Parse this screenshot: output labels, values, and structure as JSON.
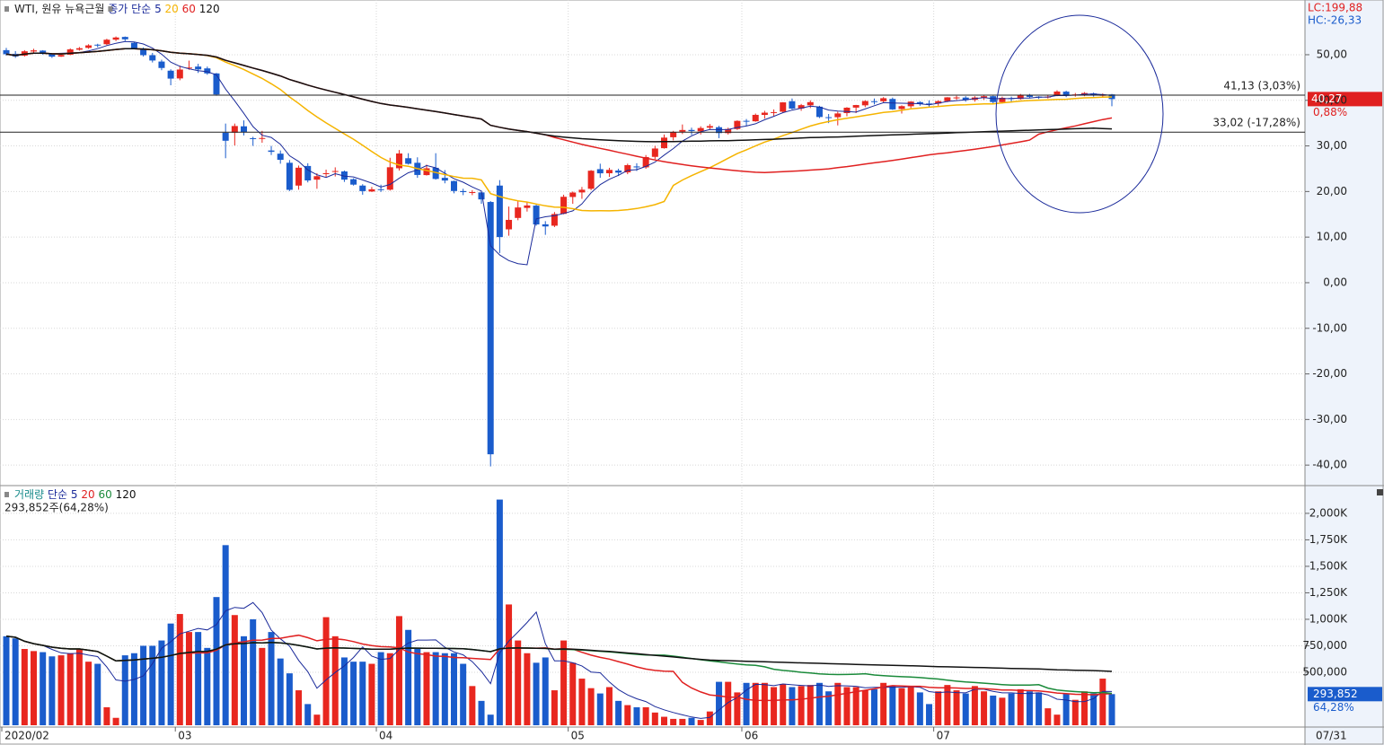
{
  "chart_data": [
    {
      "type": "candlestick",
      "title": "WTI, 원유 뉴욕근월",
      "ma_label": "종가 단순",
      "moving_averages": [
        {
          "period": 5,
          "color": "#1a2a9a"
        },
        {
          "period": 20,
          "color": "#f5b400"
        },
        {
          "period": 60,
          "color": "#e02020"
        },
        {
          "period": 120,
          "color": "#111111"
        }
      ],
      "up_color": "#e8271f",
      "down_color": "#1a5ccc",
      "categories": [
        "2020/02",
        null,
        null,
        null,
        null,
        null,
        null,
        null,
        null,
        null,
        null,
        null,
        null,
        null,
        null,
        null,
        null,
        null,
        null,
        "03",
        null,
        null,
        null,
        null,
        null,
        null,
        null,
        null,
        null,
        null,
        null,
        null,
        null,
        null,
        null,
        null,
        null,
        null,
        null,
        null,
        null,
        "04",
        null,
        null,
        null,
        null,
        null,
        null,
        null,
        null,
        null,
        null,
        null,
        null,
        null,
        null,
        null,
        null,
        null,
        null,
        null,
        null,
        "05",
        null,
        null,
        null,
        null,
        null,
        null,
        null,
        null,
        null,
        null,
        null,
        null,
        null,
        null,
        null,
        null,
        null,
        null,
        "06",
        null,
        null,
        null,
        null,
        null,
        null,
        null,
        null,
        null,
        null,
        null,
        null,
        null,
        null,
        null,
        null,
        null,
        null,
        null,
        null,
        "07",
        null,
        null,
        null,
        null,
        null,
        null,
        null,
        null,
        null,
        null,
        null,
        null,
        null,
        null,
        null,
        null,
        null,
        null,
        null
      ],
      "ohlc": [
        [
          51.0,
          51.5,
          49.8,
          50.11
        ],
        [
          50.2,
          50.8,
          49.3,
          49.61
        ],
        [
          49.8,
          51.0,
          49.6,
          50.75
        ],
        [
          50.7,
          51.3,
          50.3,
          50.95
        ],
        [
          50.9,
          51.0,
          50.0,
          50.32
        ],
        [
          50.1,
          50.3,
          49.3,
          49.57
        ],
        [
          49.6,
          50.3,
          49.5,
          49.94
        ],
        [
          50.0,
          51.4,
          49.9,
          51.17
        ],
        [
          51.1,
          51.7,
          50.9,
          51.42
        ],
        [
          51.5,
          52.3,
          51.3,
          52.05
        ],
        [
          52.2,
          52.4,
          51.6,
          52.05
        ],
        [
          52.3,
          53.5,
          52.1,
          53.29
        ],
        [
          53.3,
          54.0,
          53.0,
          53.78
        ],
        [
          53.9,
          54.0,
          53.0,
          53.38
        ],
        [
          52.6,
          52.8,
          51.2,
          51.43
        ],
        [
          51.4,
          51.6,
          49.6,
          49.9
        ],
        [
          49.9,
          50.4,
          48.3,
          48.73
        ],
        [
          48.5,
          48.9,
          46.6,
          47.09
        ],
        [
          46.5,
          46.8,
          43.3,
          44.76
        ],
        [
          44.8,
          47.6,
          44.4,
          46.75
        ],
        [
          47.1,
          48.7,
          46.7,
          47.18
        ],
        [
          47.4,
          48.0,
          46.0,
          46.78
        ],
        [
          47.0,
          47.4,
          45.6,
          45.9
        ],
        [
          45.9,
          46.0,
          41.0,
          41.28
        ],
        [
          32.9,
          34.9,
          27.3,
          31.13
        ],
        [
          32.9,
          34.9,
          30.1,
          34.36
        ],
        [
          34.3,
          35.6,
          32.3,
          32.98
        ],
        [
          31.7,
          32.0,
          30.0,
          31.5
        ],
        [
          31.7,
          33.3,
          30.7,
          31.73
        ],
        [
          29.0,
          30.0,
          28.0,
          28.7
        ],
        [
          28.3,
          29.0,
          26.1,
          26.95
        ],
        [
          26.3,
          26.9,
          20.1,
          20.37
        ],
        [
          21.3,
          25.7,
          20.4,
          25.22
        ],
        [
          25.6,
          26.2,
          22.0,
          22.43
        ],
        [
          22.6,
          24.0,
          20.6,
          23.36
        ],
        [
          23.9,
          24.8,
          23.2,
          24.01
        ],
        [
          24.3,
          25.3,
          23.3,
          24.49
        ],
        [
          24.4,
          24.6,
          22.1,
          22.6
        ],
        [
          22.7,
          22.9,
          21.3,
          21.51
        ],
        [
          21.3,
          21.6,
          19.3,
          20.09
        ],
        [
          20.0,
          21.0,
          19.9,
          20.48
        ],
        [
          20.5,
          21.5,
          19.9,
          20.31
        ],
        [
          20.4,
          27.4,
          20.2,
          25.32
        ],
        [
          25.1,
          29.1,
          24.6,
          28.34
        ],
        [
          27.3,
          28.4,
          25.9,
          26.08
        ],
        [
          26.3,
          27.5,
          23.0,
          23.63
        ],
        [
          23.6,
          25.9,
          23.5,
          25.09
        ],
        [
          25.2,
          28.4,
          22.6,
          22.76
        ],
        [
          23.0,
          24.7,
          21.8,
          22.41
        ],
        [
          22.3,
          22.4,
          19.6,
          20.11
        ],
        [
          20.1,
          20.6,
          19.2,
          19.87
        ],
        [
          19.8,
          20.3,
          19.2,
          19.87
        ],
        [
          19.8,
          20.0,
          17.3,
          18.27
        ],
        [
          17.7,
          17.9,
          -40.3,
          -37.63
        ],
        [
          21.3,
          22.5,
          6.5,
          10.01
        ],
        [
          11.7,
          16.7,
          10.3,
          13.78
        ],
        [
          14.2,
          17.9,
          13.7,
          16.5
        ],
        [
          16.4,
          17.7,
          15.6,
          16.94
        ],
        [
          16.9,
          17.1,
          12.5,
          12.78
        ],
        [
          12.8,
          13.5,
          10.5,
          12.34
        ],
        [
          12.5,
          15.5,
          12.2,
          15.06
        ],
        [
          15.1,
          19.3,
          15.0,
          18.84
        ],
        [
          18.8,
          20.0,
          17.3,
          19.78
        ],
        [
          19.8,
          21.0,
          18.4,
          20.39
        ],
        [
          20.6,
          24.7,
          20.3,
          24.56
        ],
        [
          24.9,
          26.1,
          23.0,
          23.99
        ],
        [
          24.0,
          25.2,
          23.2,
          24.74
        ],
        [
          24.6,
          25.0,
          23.4,
          24.14
        ],
        [
          24.2,
          26.1,
          23.8,
          25.78
        ],
        [
          25.5,
          26.2,
          24.5,
          25.29
        ],
        [
          25.3,
          28.0,
          25.0,
          27.56
        ],
        [
          27.6,
          30.0,
          27.1,
          29.43
        ],
        [
          29.5,
          32.5,
          29.4,
          31.82
        ],
        [
          31.9,
          33.3,
          31.2,
          32.96
        ],
        [
          33.1,
          34.7,
          32.6,
          33.49
        ],
        [
          33.5,
          34.0,
          32.4,
          33.25
        ],
        [
          33.2,
          34.3,
          32.5,
          33.92
        ],
        [
          34.0,
          34.8,
          33.6,
          34.35
        ],
        [
          34.1,
          34.4,
          31.7,
          32.81
        ],
        [
          32.8,
          34.0,
          32.5,
          33.71
        ],
        [
          33.7,
          35.6,
          33.5,
          35.49
        ],
        [
          35.5,
          35.9,
          34.4,
          35.44
        ],
        [
          35.4,
          37.1,
          35.3,
          36.81
        ],
        [
          36.8,
          37.7,
          36.0,
          37.29
        ],
        [
          37.3,
          38.0,
          36.5,
          37.41
        ],
        [
          37.5,
          39.6,
          37.3,
          39.55
        ],
        [
          39.8,
          40.4,
          38.0,
          38.19
        ],
        [
          38.2,
          39.2,
          37.7,
          38.94
        ],
        [
          38.9,
          40.0,
          38.3,
          39.6
        ],
        [
          38.6,
          38.8,
          36.1,
          36.34
        ],
        [
          36.3,
          37.0,
          35.0,
          36.26
        ],
        [
          36.3,
          37.5,
          34.5,
          37.12
        ],
        [
          37.2,
          38.5,
          36.5,
          38.38
        ],
        [
          38.4,
          39.0,
          37.2,
          38.96
        ],
        [
          38.9,
          40.0,
          38.5,
          39.84
        ],
        [
          39.8,
          40.4,
          39.1,
          39.75
        ],
        [
          39.8,
          40.7,
          39.5,
          40.46
        ],
        [
          40.3,
          40.6,
          37.9,
          38.01
        ],
        [
          38.1,
          38.9,
          37.1,
          38.72
        ],
        [
          38.7,
          39.8,
          38.3,
          39.72
        ],
        [
          39.6,
          39.8,
          38.8,
          39.27
        ],
        [
          39.3,
          40.0,
          38.5,
          39.27
        ],
        [
          39.3,
          40.0,
          38.8,
          39.82
        ],
        [
          39.8,
          40.7,
          39.6,
          40.65
        ],
        [
          40.6,
          41.0,
          40.1,
          40.63
        ],
        [
          40.6,
          40.9,
          39.7,
          40.1
        ],
        [
          40.1,
          40.9,
          39.7,
          40.62
        ],
        [
          40.6,
          41.1,
          40.1,
          40.9
        ],
        [
          40.9,
          41.0,
          39.3,
          39.62
        ],
        [
          39.6,
          40.8,
          39.3,
          40.55
        ],
        [
          40.5,
          40.8,
          39.5,
          40.29
        ],
        [
          40.3,
          41.4,
          40.1,
          41.2
        ],
        [
          41.1,
          41.4,
          40.5,
          40.75
        ],
        [
          40.8,
          40.9,
          40.3,
          40.59
        ],
        [
          40.6,
          41.1,
          40.4,
          40.81
        ],
        [
          41.0,
          42.2,
          40.9,
          41.92
        ],
        [
          41.9,
          42.1,
          40.7,
          41.07
        ],
        [
          41.1,
          41.6,
          40.8,
          41.29
        ],
        [
          41.3,
          41.8,
          40.9,
          41.6
        ],
        [
          41.5,
          41.7,
          40.8,
          41.04
        ],
        [
          41.0,
          41.5,
          40.7,
          41.27
        ],
        [
          41.3,
          41.4,
          38.7,
          40.27
        ]
      ],
      "ylim": [
        -44.3,
        62
      ],
      "yticks": [
        {
          "value": 50,
          "label": "50,00"
        },
        {
          "value": 40,
          "label": "40,00"
        },
        {
          "value": 30,
          "label": "30,00"
        },
        {
          "value": 20,
          "label": "20,00"
        },
        {
          "value": 10,
          "label": "10,00"
        },
        {
          "value": 0,
          "label": "0,00"
        },
        {
          "value": -10,
          "label": "-10,00"
        },
        {
          "value": -20,
          "label": "-20,00"
        },
        {
          "value": -30,
          "label": "-30,00"
        },
        {
          "value": -40,
          "label": "-40,00"
        }
      ],
      "grid": true,
      "hlines": [
        {
          "value": 41.13,
          "label": "41,13 (3,03%)"
        },
        {
          "value": 33.02,
          "label": "33,02 (-17,28%)"
        }
      ],
      "low_label": "LC:199,88",
      "high_label": "HC:-26,33",
      "last_value_label": "40,27",
      "change_label": "0,88%"
    },
    {
      "type": "volume",
      "title": "거래량",
      "ma_label": "단순",
      "summary": "293,852주(64,28%)",
      "moving_averages": [
        {
          "period": 5,
          "color": "#1a2a9a"
        },
        {
          "period": 20,
          "color": "#e02020"
        },
        {
          "period": 60,
          "color": "#1a8a3a"
        },
        {
          "period": 120,
          "color": "#111111"
        }
      ],
      "values": [
        840000,
        820000,
        720000,
        700000,
        690000,
        650000,
        660000,
        680000,
        720000,
        600000,
        580000,
        170000,
        70000,
        660000,
        680000,
        750000,
        750000,
        800000,
        960000,
        1050000,
        880000,
        880000,
        730000,
        1210000,
        1700000,
        1040000,
        840000,
        1000000,
        730000,
        880000,
        630000,
        490000,
        330000,
        200000,
        100000,
        1020000,
        840000,
        640000,
        600000,
        600000,
        580000,
        690000,
        680000,
        1030000,
        900000,
        720000,
        690000,
        690000,
        680000,
        680000,
        580000,
        370000,
        230000,
        100000,
        2130000,
        1140000,
        800000,
        680000,
        590000,
        640000,
        330000,
        800000,
        590000,
        440000,
        350000,
        300000,
        360000,
        230000,
        190000,
        170000,
        170000,
        120000,
        80000,
        60000,
        60000,
        70000,
        50000,
        130000,
        410000,
        410000,
        310000,
        400000,
        400000,
        400000,
        360000,
        390000,
        360000,
        370000,
        380000,
        400000,
        320000,
        400000,
        360000,
        360000,
        330000,
        340000,
        400000,
        370000,
        350000,
        360000,
        310000,
        200000,
        320000,
        380000,
        330000,
        300000,
        370000,
        320000,
        280000,
        260000,
        300000,
        340000,
        320000,
        310000,
        160000,
        100000,
        300000,
        240000,
        320000,
        300000,
        440000,
        293852
      ],
      "ylim": [
        0,
        2245000
      ],
      "yticks": [
        {
          "value": 2000000,
          "label": "2,000K"
        },
        {
          "value": 1750000,
          "label": "1,750K"
        },
        {
          "value": 1500000,
          "label": "1,500K"
        },
        {
          "value": 1250000,
          "label": "1,250K"
        },
        {
          "value": 1000000,
          "label": "1,000K"
        },
        {
          "value": 750000,
          "label": "750,000"
        },
        {
          "value": 500000,
          "label": "500,000"
        }
      ],
      "grid": true,
      "last_value_label": "293,852",
      "change_label": "64,28%"
    }
  ],
  "last_date_label": "07/31"
}
